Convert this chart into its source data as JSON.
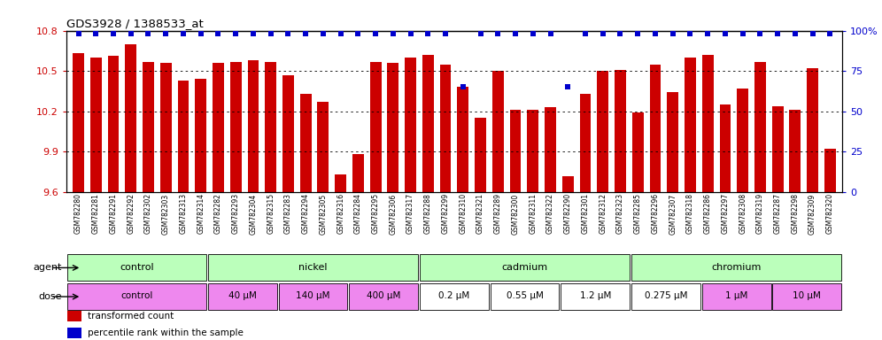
{
  "title": "GDS3928 / 1388533_at",
  "samples": [
    "GSM782280",
    "GSM782281",
    "GSM782291",
    "GSM782292",
    "GSM782302",
    "GSM782303",
    "GSM782313",
    "GSM782314",
    "GSM782282",
    "GSM782293",
    "GSM782304",
    "GSM782315",
    "GSM782283",
    "GSM782294",
    "GSM782305",
    "GSM782316",
    "GSM782284",
    "GSM782295",
    "GSM782306",
    "GSM782317",
    "GSM782288",
    "GSM782299",
    "GSM782310",
    "GSM782321",
    "GSM782289",
    "GSM782300",
    "GSM782311",
    "GSM782322",
    "GSM782290",
    "GSM782301",
    "GSM782312",
    "GSM782323",
    "GSM782285",
    "GSM782296",
    "GSM782307",
    "GSM782318",
    "GSM782286",
    "GSM782297",
    "GSM782308",
    "GSM782319",
    "GSM782287",
    "GSM782298",
    "GSM782309",
    "GSM782320"
  ],
  "bar_values": [
    10.63,
    10.6,
    10.61,
    10.7,
    10.57,
    10.56,
    10.43,
    10.44,
    10.56,
    10.57,
    10.58,
    10.57,
    10.47,
    10.33,
    10.27,
    9.73,
    9.88,
    10.57,
    10.56,
    10.6,
    10.62,
    10.55,
    10.38,
    10.15,
    10.5,
    10.21,
    10.21,
    10.23,
    9.72,
    10.33,
    10.5,
    10.51,
    10.19,
    10.55,
    10.34,
    10.6,
    10.62,
    10.25,
    10.37,
    10.57,
    10.24,
    10.21,
    10.52,
    9.92
  ],
  "percentile_values": [
    98,
    98,
    98,
    98,
    98,
    98,
    98,
    98,
    98,
    98,
    98,
    98,
    98,
    98,
    98,
    98,
    98,
    98,
    98,
    98,
    98,
    98,
    65,
    98,
    98,
    98,
    98,
    98,
    65,
    98,
    98,
    98,
    98,
    98,
    98,
    98,
    98,
    98,
    98,
    98,
    98,
    98,
    98,
    98
  ],
  "ymin": 9.6,
  "ymax": 10.8,
  "yticks_left": [
    9.6,
    9.9,
    10.2,
    10.5,
    10.8
  ],
  "yticks_right": [
    0,
    25,
    50,
    75,
    100
  ],
  "bar_color": "#cc0000",
  "percentile_color": "#0000cc",
  "bg_color": "#ffffff",
  "plot_bg": "#ffffff",
  "grid_lines": [
    9.9,
    10.2,
    10.5
  ],
  "agent_color": "#bbffbb",
  "dose_pink": "#ee88ee",
  "dose_control": "#eeccee",
  "agent_groups": [
    {
      "label": "control",
      "start": 0,
      "end": 8
    },
    {
      "label": "nickel",
      "start": 8,
      "end": 20
    },
    {
      "label": "cadmium",
      "start": 20,
      "end": 32
    },
    {
      "label": "chromium",
      "start": 32,
      "end": 44
    }
  ],
  "dose_groups": [
    {
      "label": "control",
      "start": 0,
      "end": 8,
      "pink": true
    },
    {
      "label": "40 μM",
      "start": 8,
      "end": 12,
      "pink": true
    },
    {
      "label": "140 μM",
      "start": 12,
      "end": 16,
      "pink": true
    },
    {
      "label": "400 μM",
      "start": 16,
      "end": 20,
      "pink": true
    },
    {
      "label": "0.2 μM",
      "start": 20,
      "end": 24,
      "pink": false
    },
    {
      "label": "0.55 μM",
      "start": 24,
      "end": 28,
      "pink": false
    },
    {
      "label": "1.2 μM",
      "start": 28,
      "end": 32,
      "pink": false
    },
    {
      "label": "0.275 μM",
      "start": 32,
      "end": 36,
      "pink": false
    },
    {
      "label": "1 μM",
      "start": 36,
      "end": 40,
      "pink": true
    },
    {
      "label": "10 μM",
      "start": 40,
      "end": 44,
      "pink": true
    }
  ],
  "legend_items": [
    {
      "color": "#cc0000",
      "label": "transformed count"
    },
    {
      "color": "#0000cc",
      "label": "percentile rank within the sample"
    }
  ]
}
